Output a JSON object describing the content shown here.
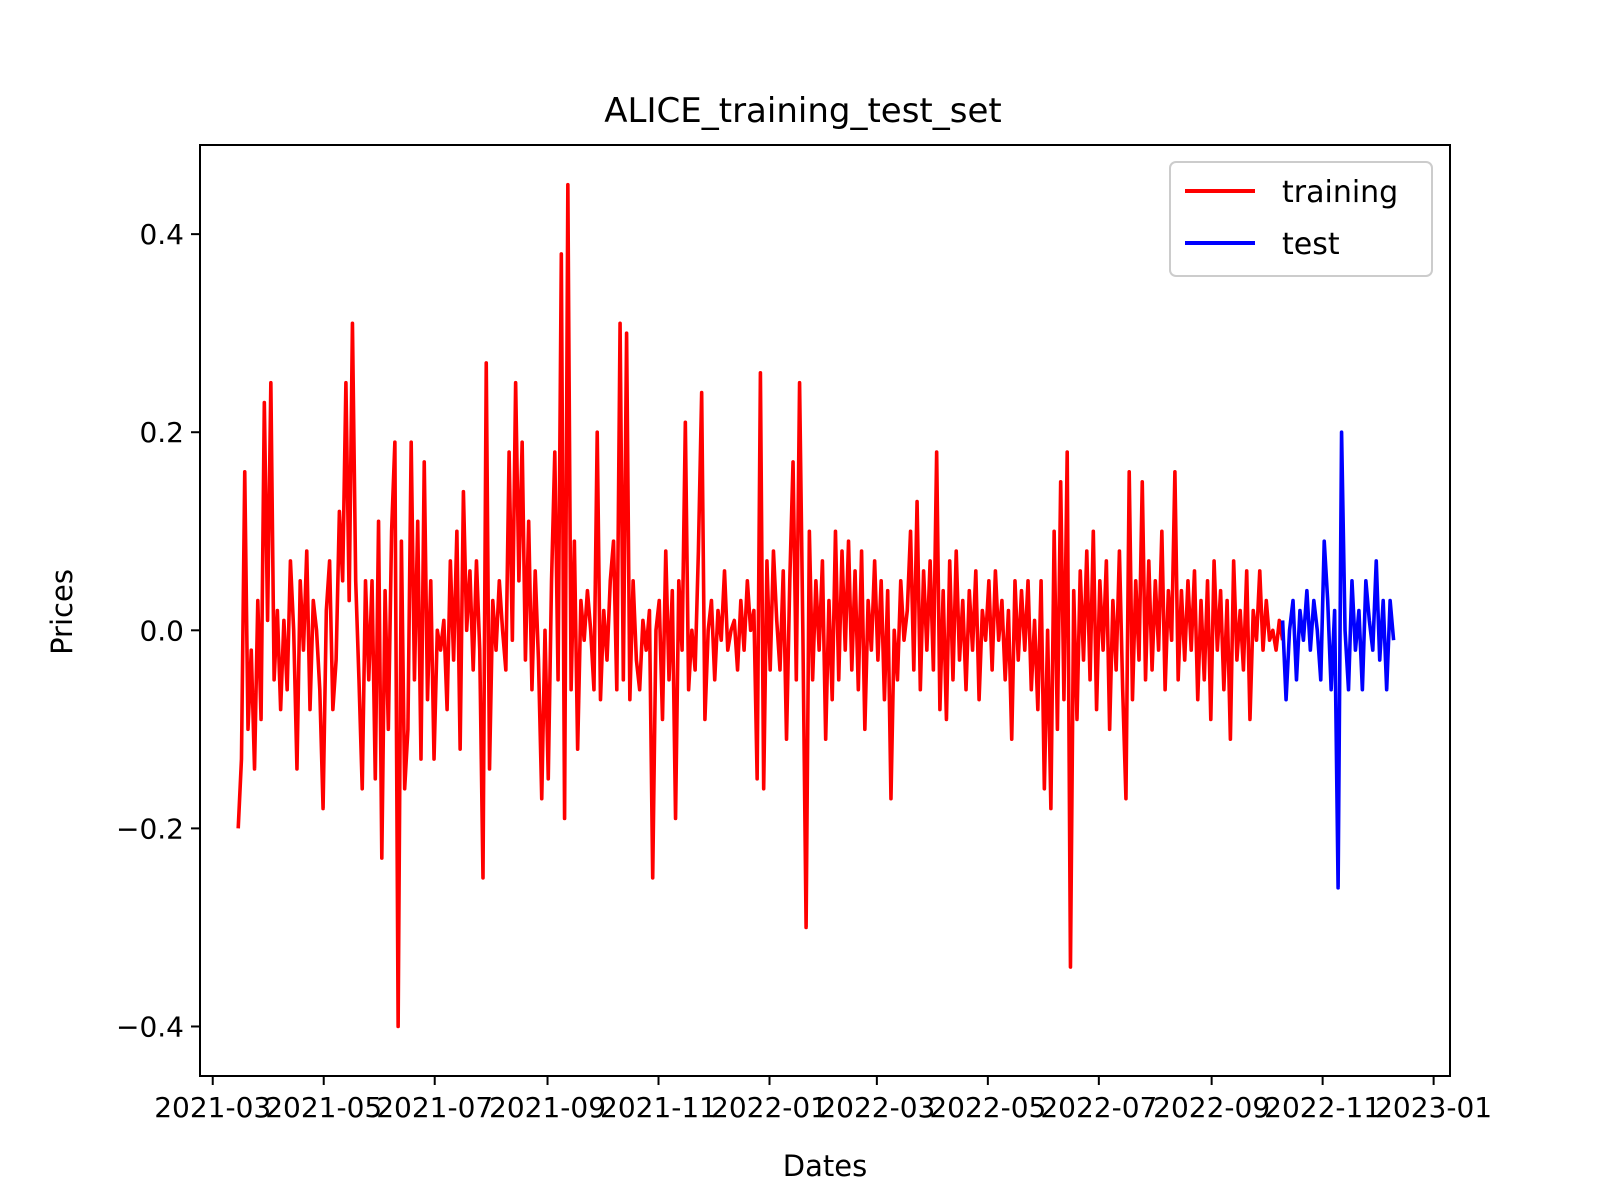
{
  "chart_data": {
    "type": "line",
    "title": "ALICE_training_test_set",
    "xlabel": "Dates",
    "ylabel": "Prices",
    "xlim": [
      "2021-02-22",
      "2023-01-10"
    ],
    "ylim": [
      -0.45,
      0.49
    ],
    "xticks": [
      "2021-03",
      "2021-05",
      "2021-07",
      "2021-09",
      "2021-11",
      "2022-01",
      "2022-03",
      "2022-05",
      "2022-07",
      "2022-09",
      "2022-11",
      "2023-01"
    ],
    "yticks": [
      -0.4,
      -0.2,
      0.0,
      0.2,
      0.4
    ],
    "ytick_labels": [
      "−0.4",
      "−0.2",
      "0.0",
      "0.2",
      "0.4"
    ],
    "grid": false,
    "legend": "top-right",
    "series": [
      {
        "name": "training",
        "color": "#ff0000",
        "x_start": "2021-03-15",
        "x_end": "2022-10-10",
        "values": [
          -0.2,
          -0.13,
          0.16,
          -0.1,
          -0.02,
          -0.14,
          0.03,
          -0.09,
          0.23,
          0.01,
          0.25,
          -0.05,
          0.02,
          -0.08,
          0.01,
          -0.06,
          0.07,
          0.0,
          -0.14,
          0.05,
          -0.02,
          0.08,
          -0.08,
          0.03,
          0.0,
          -0.06,
          -0.18,
          0.02,
          0.07,
          -0.08,
          -0.03,
          0.12,
          0.05,
          0.25,
          0.03,
          0.31,
          0.05,
          -0.05,
          -0.16,
          0.05,
          -0.05,
          0.05,
          -0.15,
          0.11,
          -0.23,
          0.04,
          -0.1,
          0.1,
          0.19,
          -0.4,
          0.09,
          -0.16,
          -0.1,
          0.19,
          -0.05,
          0.11,
          -0.13,
          0.17,
          -0.07,
          0.05,
          -0.13,
          0.0,
          -0.02,
          0.01,
          -0.08,
          0.07,
          -0.03,
          0.1,
          -0.12,
          0.14,
          0.0,
          0.06,
          -0.04,
          0.07,
          -0.02,
          -0.25,
          0.27,
          -0.14,
          0.03,
          -0.02,
          0.05,
          0.0,
          -0.04,
          0.18,
          -0.01,
          0.25,
          0.05,
          0.19,
          -0.03,
          0.11,
          -0.06,
          0.06,
          -0.03,
          -0.17,
          0.0,
          -0.15,
          0.05,
          0.18,
          -0.05,
          0.38,
          -0.19,
          0.45,
          -0.06,
          0.09,
          -0.12,
          0.03,
          -0.01,
          0.04,
          0.0,
          -0.06,
          0.2,
          -0.07,
          0.02,
          -0.03,
          0.05,
          0.09,
          -0.06,
          0.31,
          -0.05,
          0.3,
          -0.07,
          0.05,
          -0.03,
          -0.06,
          0.01,
          -0.02,
          0.02,
          -0.25,
          0.0,
          0.03,
          -0.09,
          0.08,
          -0.05,
          0.04,
          -0.19,
          0.05,
          -0.02,
          0.21,
          -0.06,
          0.0,
          -0.04,
          0.08,
          0.24,
          -0.09,
          0.0,
          0.03,
          -0.05,
          0.02,
          -0.01,
          0.06,
          -0.02,
          0.0,
          0.01,
          -0.04,
          0.03,
          -0.02,
          0.05,
          0.0,
          0.02,
          -0.15,
          0.26,
          -0.16,
          0.07,
          -0.04,
          0.08,
          0.01,
          -0.04,
          0.06,
          -0.11,
          0.05,
          0.17,
          -0.05,
          0.25,
          0.0,
          -0.3,
          0.1,
          -0.05,
          0.05,
          -0.02,
          0.07,
          -0.11,
          0.03,
          -0.07,
          0.1,
          -0.05,
          0.08,
          -0.02,
          0.09,
          -0.04,
          0.06,
          -0.06,
          0.08,
          -0.1,
          0.03,
          -0.02,
          0.07,
          -0.03,
          0.05,
          -0.07,
          0.04,
          -0.17,
          0.0,
          -0.05,
          0.05,
          -0.01,
          0.02,
          0.1,
          -0.04,
          0.13,
          -0.06,
          0.06,
          -0.02,
          0.07,
          -0.04,
          0.18,
          -0.08,
          0.04,
          -0.09,
          0.07,
          -0.05,
          0.08,
          -0.03,
          0.03,
          -0.06,
          0.04,
          -0.02,
          0.06,
          -0.07,
          0.02,
          -0.01,
          0.05,
          -0.04,
          0.06,
          -0.01,
          0.03,
          -0.05,
          0.02,
          -0.11,
          0.05,
          -0.03,
          0.04,
          -0.02,
          0.05,
          -0.06,
          0.01,
          -0.08,
          0.05,
          -0.16,
          0.0,
          -0.18,
          0.1,
          -0.1,
          0.15,
          -0.07,
          0.18,
          -0.34,
          0.04,
          -0.09,
          0.06,
          -0.03,
          0.08,
          -0.05,
          0.1,
          -0.08,
          0.05,
          -0.02,
          0.07,
          -0.1,
          0.03,
          -0.04,
          0.08,
          -0.06,
          -0.17,
          0.16,
          -0.07,
          0.05,
          -0.03,
          0.15,
          -0.05,
          0.07,
          -0.04,
          0.05,
          -0.02,
          0.1,
          -0.06,
          0.04,
          -0.01,
          0.16,
          -0.05,
          0.04,
          -0.03,
          0.05,
          -0.02,
          0.06,
          -0.07,
          0.03,
          -0.05,
          0.05,
          -0.09,
          0.07,
          -0.02,
          0.04,
          -0.06,
          0.03,
          -0.11,
          0.07,
          -0.03,
          0.02,
          -0.04,
          0.06,
          -0.09,
          0.02,
          -0.01,
          0.06,
          -0.02,
          0.03,
          -0.01,
          0.0,
          -0.02,
          0.01,
          -0.01
        ]
      },
      {
        "name": "test",
        "color": "#0000ff",
        "x_start": "2022-10-10",
        "x_end": "2022-12-10",
        "values": [
          0.01,
          -0.07,
          0.0,
          0.03,
          -0.05,
          0.02,
          -0.01,
          0.04,
          -0.02,
          0.03,
          0.0,
          -0.05,
          0.09,
          0.03,
          -0.06,
          0.02,
          -0.26,
          0.2,
          0.0,
          -0.06,
          0.05,
          -0.02,
          0.02,
          -0.06,
          0.05,
          0.01,
          -0.02,
          0.07,
          -0.03,
          0.03,
          -0.06,
          0.03,
          -0.01
        ]
      }
    ]
  }
}
